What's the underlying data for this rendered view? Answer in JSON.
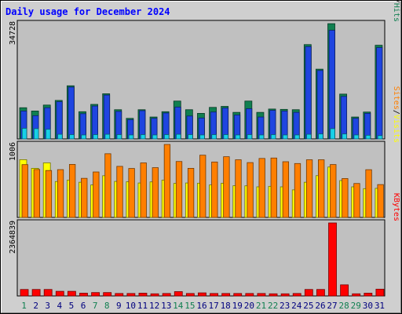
{
  "chart_data": {
    "type": "bar",
    "title": "Daily usage for December 2024",
    "colors": {
      "background": "#cfcfcf",
      "plot_background": "#c0c0c0",
      "title_text": "#0000ff",
      "axis_text": "#000000",
      "hits": "#107f50",
      "files": "#1f45e0",
      "pages": "#17d0e8",
      "visits": "#ffff00",
      "sites": "#ff7f00",
      "kbytes": "#ff0000",
      "weekday_label": "#00007f",
      "weekend_label": "#107f50"
    },
    "categories": [
      "1",
      "2",
      "3",
      "4",
      "5",
      "6",
      "7",
      "8",
      "9",
      "10",
      "11",
      "12",
      "13",
      "14",
      "15",
      "16",
      "17",
      "18",
      "19",
      "20",
      "21",
      "22",
      "23",
      "24",
      "25",
      "26",
      "27",
      "28",
      "29",
      "30",
      "31"
    ],
    "weekend_days": [
      "1",
      "7",
      "8",
      "14",
      "15",
      "21",
      "22",
      "28",
      "29"
    ],
    "panels": [
      {
        "id": "hits-files-pages",
        "max_label": "34728",
        "ymax": 34728,
        "legend": [
          {
            "text": "Pages",
            "color_key": "pages"
          },
          {
            "text": "/",
            "color_key": "axis_text"
          },
          {
            "text": "Files",
            "color_key": "files"
          },
          {
            "text": "/",
            "color_key": "axis_text"
          },
          {
            "text": "Hits",
            "color_key": "hits"
          }
        ],
        "series": [
          {
            "name": "Hits",
            "color_key": "hits",
            "values": [
              9400,
              8400,
              10200,
              11600,
              16000,
              8200,
              10400,
              13600,
              8800,
              6200,
              8800,
              6600,
              8200,
              11400,
              8800,
              7700,
              9500,
              9800,
              8000,
              11400,
              8000,
              9000,
              8900,
              8800,
              28400,
              21000,
              34700,
              13500,
              6600,
              8100,
              28200
            ]
          },
          {
            "name": "Files",
            "color_key": "files",
            "values": [
              8400,
              7000,
              9400,
              11200,
              15600,
              7600,
              9900,
              13200,
              8300,
              5800,
              8500,
              6200,
              7800,
              9600,
              6900,
              6300,
              8100,
              9300,
              7200,
              9100,
              6600,
              8600,
              8400,
              8000,
              27800,
              20600,
              32700,
              12800,
              6200,
              7700,
              27500
            ]
          },
          {
            "name": "Pages",
            "color_key": "pages",
            "values": [
              3200,
              3100,
              2900,
              1400,
              1300,
              1200,
              1300,
              1400,
              1300,
              1200,
              1300,
              1200,
              1300,
              1400,
              1300,
              1200,
              1300,
              1300,
              1200,
              1300,
              1200,
              1300,
              1200,
              1200,
              1400,
              1500,
              3100,
              1500,
              1200,
              1100,
              1000
            ]
          }
        ]
      },
      {
        "id": "visits-sites",
        "max_label": "1006",
        "ymax": 1006,
        "legend": [
          {
            "text": "Sites",
            "color_key": "sites"
          },
          {
            "text": "/",
            "color_key": "axis_text"
          },
          {
            "text": "Visits",
            "color_key": "visits"
          }
        ],
        "series": [
          {
            "name": "Visits",
            "color_key": "visits",
            "values": [
              796,
              677,
              752,
              495,
              514,
              485,
              448,
              575,
              497,
              492,
              475,
              490,
              515,
              469,
              475,
              472,
              448,
              472,
              437,
              436,
              422,
              429,
              422,
              380,
              485,
              576,
              695,
              508,
              422,
              397,
              401
            ]
          },
          {
            "name": "Sites",
            "color_key": "sites",
            "values": [
              728,
              661,
              647,
              659,
              731,
              539,
              627,
              878,
              704,
              675,
              752,
              686,
              1006,
              771,
              677,
              858,
              764,
              837,
              795,
              756,
              813,
              819,
              768,
              743,
              795,
              795,
              729,
              536,
              468,
              658,
              453
            ]
          }
        ]
      },
      {
        "id": "kbytes",
        "max_label": "2364839",
        "ymax": 2364839,
        "legend": [
          {
            "text": "KBytes",
            "color_key": "kbytes"
          }
        ],
        "series": [
          {
            "name": "KBytes",
            "color_key": "kbytes",
            "values": [
              210000,
              210000,
              210000,
              150000,
              150000,
              90000,
              110000,
              110000,
              80000,
              80000,
              90000,
              70000,
              80000,
              140000,
              80000,
              100000,
              80000,
              80000,
              80000,
              80000,
              80000,
              70000,
              70000,
              80000,
              210000,
              210000,
              2364839,
              360000,
              70000,
              90000,
              220000
            ]
          }
        ]
      }
    ]
  }
}
